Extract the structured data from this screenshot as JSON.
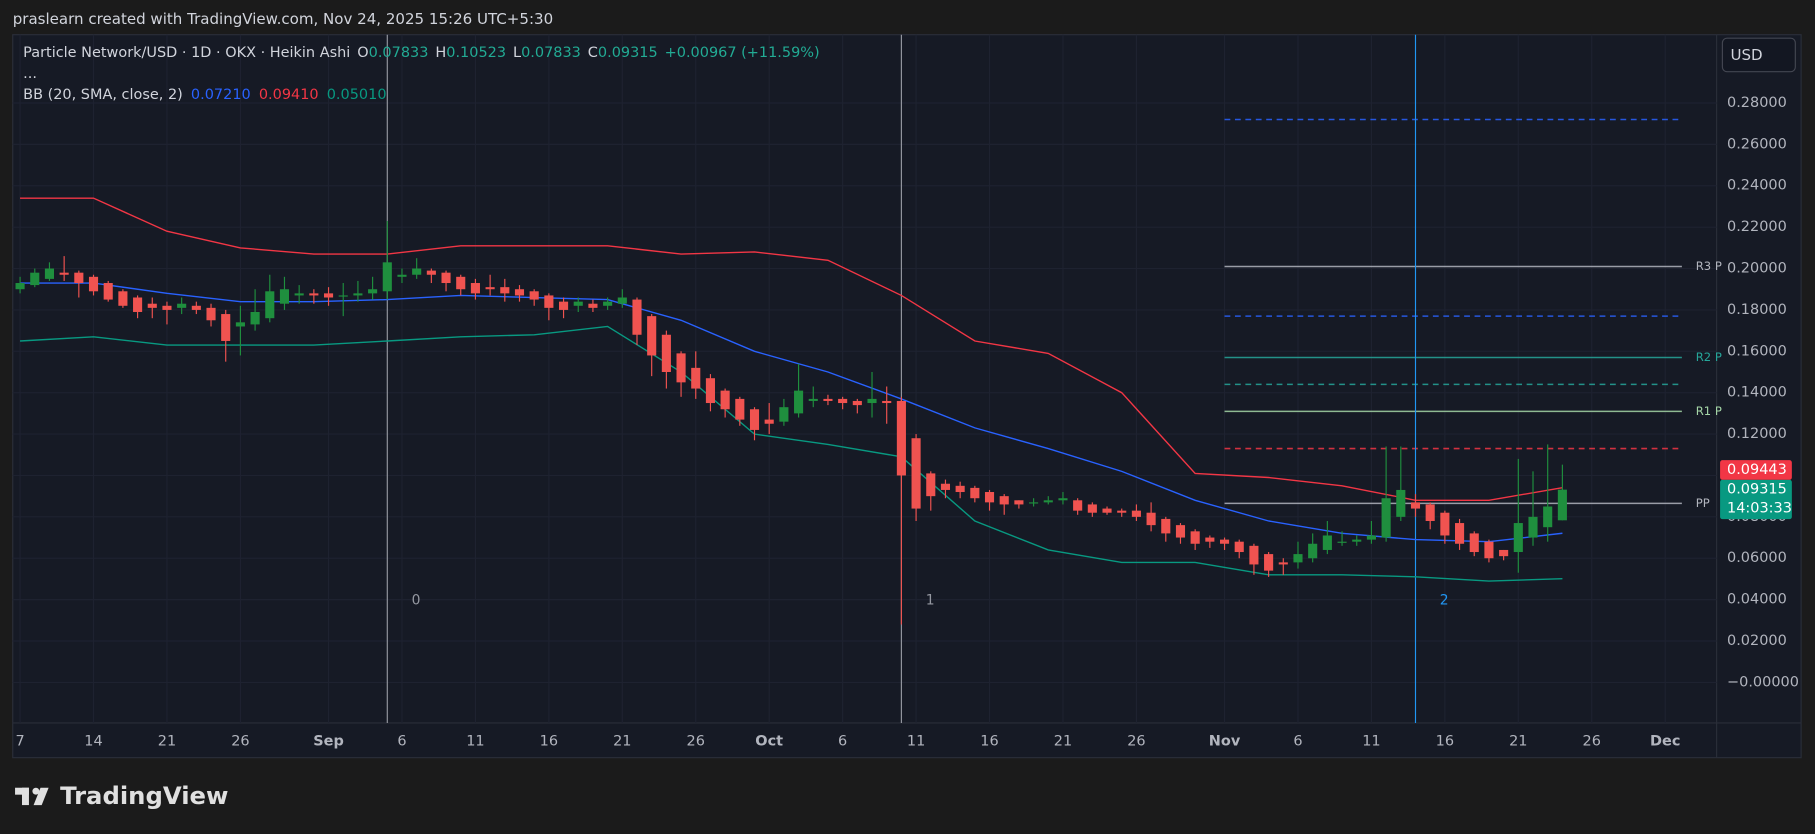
{
  "header": {
    "credit": "praslearn created with TradingView.com, Nov 24, 2025 15:26 UTC+5:30"
  },
  "chart_data": {
    "type": "candlestick",
    "title": "Particle Network/USD · 1D · OKX · Heikin Ashi",
    "ohlc_legend": [
      {
        "label": "O",
        "value": 0.07833
      },
      {
        "label": "H",
        "value": 0.10523
      },
      {
        "label": "L",
        "value": 0.07833
      },
      {
        "label": "C",
        "value": 0.09315
      }
    ],
    "change": "+0.00967 (+11.59%)",
    "more": "...",
    "indicator": {
      "name": "BB (20, SMA, close, 2)",
      "values": [
        {
          "value": 0.0721,
          "label": "0.07210",
          "color": "#2962ff"
        },
        {
          "value": 0.0941,
          "label": "0.09410",
          "color": "#f23645"
        },
        {
          "value": 0.0501,
          "label": "0.05010",
          "color": "#089981"
        }
      ]
    },
    "currency": "USD",
    "up_color": "#1f8f3e",
    "down_color": "#f05350",
    "open": [
      0.19,
      0.192,
      0.195,
      0.198,
      0.198,
      0.196,
      0.193,
      0.189,
      0.186,
      0.183,
      0.182,
      0.181,
      0.182,
      0.181,
      0.178,
      0.172,
      0.173,
      0.176,
      0.183,
      0.187,
      0.188,
      0.188,
      0.187,
      0.187,
      0.188,
      0.189,
      0.196,
      0.197,
      0.199,
      0.198,
      0.196,
      0.193,
      0.191,
      0.191,
      0.19,
      0.189,
      0.187,
      0.184,
      0.182,
      0.183,
      0.182,
      0.183,
      0.185,
      0.177,
      0.168,
      0.159,
      0.152,
      0.147,
      0.141,
      0.137,
      0.132,
      0.127,
      0.126,
      0.13,
      0.136,
      0.137,
      0.137,
      0.136,
      0.135,
      0.136,
      0.136,
      0.118,
      0.101,
      0.096,
      0.095,
      0.094,
      0.092,
      0.09,
      0.088,
      0.087,
      0.087,
      0.088,
      0.088,
      0.086,
      0.084,
      0.083,
      0.083,
      0.082,
      0.079,
      0.076,
      0.073,
      0.07,
      0.069,
      0.068,
      0.066,
      0.062,
      0.058,
      0.058,
      0.06,
      0.064,
      0.068,
      0.068,
      0.069,
      0.07,
      0.08,
      0.087,
      0.086,
      0.082,
      0.077,
      0.072,
      0.068,
      0.064,
      0.063,
      0.07,
      0.075,
      0.07833
    ],
    "high": [
      0.196,
      0.2,
      0.203,
      0.206,
      0.199,
      0.197,
      0.194,
      0.19,
      0.187,
      0.186,
      0.184,
      0.186,
      0.184,
      0.183,
      0.18,
      0.182,
      0.19,
      0.197,
      0.196,
      0.192,
      0.19,
      0.191,
      0.193,
      0.194,
      0.196,
      0.223,
      0.2,
      0.205,
      0.2,
      0.199,
      0.197,
      0.195,
      0.197,
      0.195,
      0.192,
      0.19,
      0.188,
      0.186,
      0.186,
      0.185,
      0.186,
      0.19,
      0.186,
      0.178,
      0.17,
      0.16,
      0.16,
      0.149,
      0.142,
      0.138,
      0.133,
      0.135,
      0.137,
      0.154,
      0.143,
      0.139,
      0.138,
      0.137,
      0.15,
      0.143,
      0.138,
      0.12,
      0.102,
      0.098,
      0.097,
      0.095,
      0.093,
      0.091,
      0.088,
      0.089,
      0.09,
      0.092,
      0.089,
      0.087,
      0.085,
      0.084,
      0.086,
      0.087,
      0.08,
      0.077,
      0.074,
      0.071,
      0.07,
      0.069,
      0.067,
      0.063,
      0.06,
      0.068,
      0.072,
      0.078,
      0.073,
      0.071,
      0.078,
      0.114,
      0.114,
      0.091,
      0.087,
      0.083,
      0.079,
      0.073,
      0.069,
      0.064,
      0.108,
      0.102,
      0.115,
      0.10523
    ],
    "low": [
      0.188,
      0.191,
      0.194,
      0.194,
      0.186,
      0.187,
      0.184,
      0.181,
      0.176,
      0.176,
      0.173,
      0.178,
      0.178,
      0.172,
      0.155,
      0.158,
      0.17,
      0.174,
      0.18,
      0.183,
      0.183,
      0.182,
      0.177,
      0.184,
      0.185,
      0.185,
      0.193,
      0.195,
      0.193,
      0.189,
      0.187,
      0.185,
      0.187,
      0.184,
      0.184,
      0.182,
      0.175,
      0.176,
      0.179,
      0.179,
      0.18,
      0.181,
      0.163,
      0.148,
      0.142,
      0.138,
      0.137,
      0.131,
      0.128,
      0.124,
      0.117,
      0.12,
      0.124,
      0.128,
      0.133,
      0.134,
      0.132,
      0.13,
      0.128,
      0.125,
      0.028,
      0.078,
      0.083,
      0.089,
      0.089,
      0.087,
      0.083,
      0.081,
      0.084,
      0.085,
      0.086,
      0.086,
      0.081,
      0.08,
      0.081,
      0.08,
      0.078,
      0.073,
      0.068,
      0.067,
      0.064,
      0.065,
      0.064,
      0.06,
      0.052,
      0.051,
      0.052,
      0.055,
      0.058,
      0.062,
      0.066,
      0.066,
      0.067,
      0.068,
      0.078,
      0.08,
      0.074,
      0.067,
      0.064,
      0.061,
      0.058,
      0.059,
      0.053,
      0.066,
      0.068,
      0.07833
    ],
    "close": [
      0.193,
      0.198,
      0.2,
      0.197,
      0.193,
      0.189,
      0.185,
      0.182,
      0.179,
      0.181,
      0.18,
      0.183,
      0.18,
      0.175,
      0.165,
      0.174,
      0.179,
      0.189,
      0.19,
      0.188,
      0.187,
      0.186,
      0.187,
      0.188,
      0.19,
      0.203,
      0.197,
      0.2,
      0.197,
      0.193,
      0.19,
      0.188,
      0.19,
      0.188,
      0.187,
      0.185,
      0.181,
      0.18,
      0.184,
      0.181,
      0.184,
      0.186,
      0.168,
      0.158,
      0.15,
      0.145,
      0.142,
      0.135,
      0.132,
      0.127,
      0.122,
      0.125,
      0.133,
      0.141,
      0.137,
      0.136,
      0.135,
      0.134,
      0.137,
      0.135,
      0.1,
      0.084,
      0.09,
      0.093,
      0.092,
      0.089,
      0.087,
      0.086,
      0.086,
      0.087,
      0.088,
      0.089,
      0.083,
      0.082,
      0.082,
      0.082,
      0.08,
      0.076,
      0.072,
      0.07,
      0.067,
      0.068,
      0.067,
      0.063,
      0.057,
      0.054,
      0.057,
      0.062,
      0.067,
      0.071,
      0.068,
      0.069,
      0.071,
      0.089,
      0.093,
      0.084,
      0.078,
      0.071,
      0.067,
      0.063,
      0.06,
      0.061,
      0.077,
      0.08,
      0.085,
      0.09315
    ],
    "bands": {
      "x": [
        0,
        5,
        10,
        15,
        20,
        25,
        30,
        35,
        40,
        45,
        50,
        55,
        60,
        65,
        70,
        75,
        80,
        85,
        90,
        95,
        100,
        105
      ],
      "upper": [
        0.234,
        0.234,
        0.218,
        0.21,
        0.207,
        0.207,
        0.211,
        0.211,
        0.211,
        0.207,
        0.208,
        0.204,
        0.187,
        0.165,
        0.159,
        0.14,
        0.101,
        0.099,
        0.095,
        0.088,
        0.088,
        0.0941
      ],
      "basis": [
        0.193,
        0.193,
        0.188,
        0.184,
        0.184,
        0.185,
        0.187,
        0.186,
        0.185,
        0.175,
        0.16,
        0.15,
        0.137,
        0.123,
        0.113,
        0.102,
        0.088,
        0.078,
        0.072,
        0.069,
        0.068,
        0.0721
      ],
      "lower": [
        0.165,
        0.167,
        0.163,
        0.163,
        0.163,
        0.165,
        0.167,
        0.168,
        0.172,
        0.15,
        0.12,
        0.115,
        0.109,
        0.078,
        0.064,
        0.058,
        0.058,
        0.052,
        0.052,
        0.051,
        0.049,
        0.0501
      ],
      "colors": {
        "upper": "#f23645",
        "basis": "#2962ff",
        "lower": "#089981"
      }
    },
    "pivot_start": 82,
    "pivots": [
      {
        "value": 0.272,
        "color": "#2962ff",
        "dashed": true
      },
      {
        "value": 0.201,
        "color": "#b2b5be",
        "label": "R3 P"
      },
      {
        "value": 0.177,
        "color": "#2962ff",
        "dashed": true
      },
      {
        "value": 0.157,
        "color": "#26a69a",
        "label": "R2 P"
      },
      {
        "value": 0.144,
        "color": "#26a69a",
        "dashed": true
      },
      {
        "value": 0.131,
        "color": "#a5d6a7",
        "label": "R1 P"
      },
      {
        "value": 0.113,
        "color": "#f23645",
        "dashed": true
      },
      {
        "value": 0.0865,
        "color": "#b2b5be",
        "label": "PP"
      }
    ],
    "vlines": [
      {
        "x": 25,
        "label": "0",
        "color": "#9598a1"
      },
      {
        "x": 60,
        "label": "1",
        "color": "#9598a1"
      },
      {
        "x": 95,
        "label": "2",
        "color": "#2196f3"
      }
    ],
    "price_tags": [
      {
        "value": 0.09443,
        "label": "0.09443",
        "color": "#f23645"
      },
      {
        "value": 0.09315,
        "label": "0.09315",
        "time": "14:03:33",
        "color": "#089981"
      }
    ],
    "xlim": [
      -0.5,
      115.5
    ],
    "xticks": [
      {
        "value": 0,
        "label": "7"
      },
      {
        "value": 5,
        "label": "14"
      },
      {
        "value": 10,
        "label": "21"
      },
      {
        "value": 15,
        "label": "26"
      },
      {
        "value": 21,
        "label": "Sep"
      },
      {
        "value": 26,
        "label": "6"
      },
      {
        "value": 31,
        "label": "11"
      },
      {
        "value": 36,
        "label": "16"
      },
      {
        "value": 41,
        "label": "21"
      },
      {
        "value": 46,
        "label": "26"
      },
      {
        "value": 51,
        "label": "Oct"
      },
      {
        "value": 56,
        "label": "6"
      },
      {
        "value": 61,
        "label": "11"
      },
      {
        "value": 66,
        "label": "16"
      },
      {
        "value": 71,
        "label": "21"
      },
      {
        "value": 76,
        "label": "26"
      },
      {
        "value": 82,
        "label": "Nov"
      },
      {
        "value": 87,
        "label": "6"
      },
      {
        "value": 92,
        "label": "11"
      },
      {
        "value": 97,
        "label": "16"
      },
      {
        "value": 102,
        "label": "21"
      },
      {
        "value": 107,
        "label": "26"
      },
      {
        "value": 112,
        "label": "Dec"
      }
    ],
    "ylim": [
      -0.0196,
      0.313
    ],
    "yticks": [
      {
        "value": 0.28,
        "label": "0.28000"
      },
      {
        "value": 0.26,
        "label": "0.26000"
      },
      {
        "value": 0.24,
        "label": "0.24000"
      },
      {
        "value": 0.22,
        "label": "0.22000"
      },
      {
        "value": 0.2,
        "label": "0.20000"
      },
      {
        "value": 0.18,
        "label": "0.18000"
      },
      {
        "value": 0.16,
        "label": "0.16000"
      },
      {
        "value": 0.14,
        "label": "0.14000"
      },
      {
        "value": 0.12,
        "label": "0.12000"
      },
      {
        "value": 0.1,
        "label": "0.10000"
      },
      {
        "value": 0.08,
        "label": "0.08000"
      },
      {
        "value": 0.06,
        "label": "0.06000"
      },
      {
        "value": 0.04,
        "label": "0.04000"
      },
      {
        "value": 0.02,
        "label": "0.02000"
      },
      {
        "value": 0,
        "label": "−0.00000"
      }
    ],
    "grid": true
  },
  "footer": {
    "brand": "TradingView"
  }
}
